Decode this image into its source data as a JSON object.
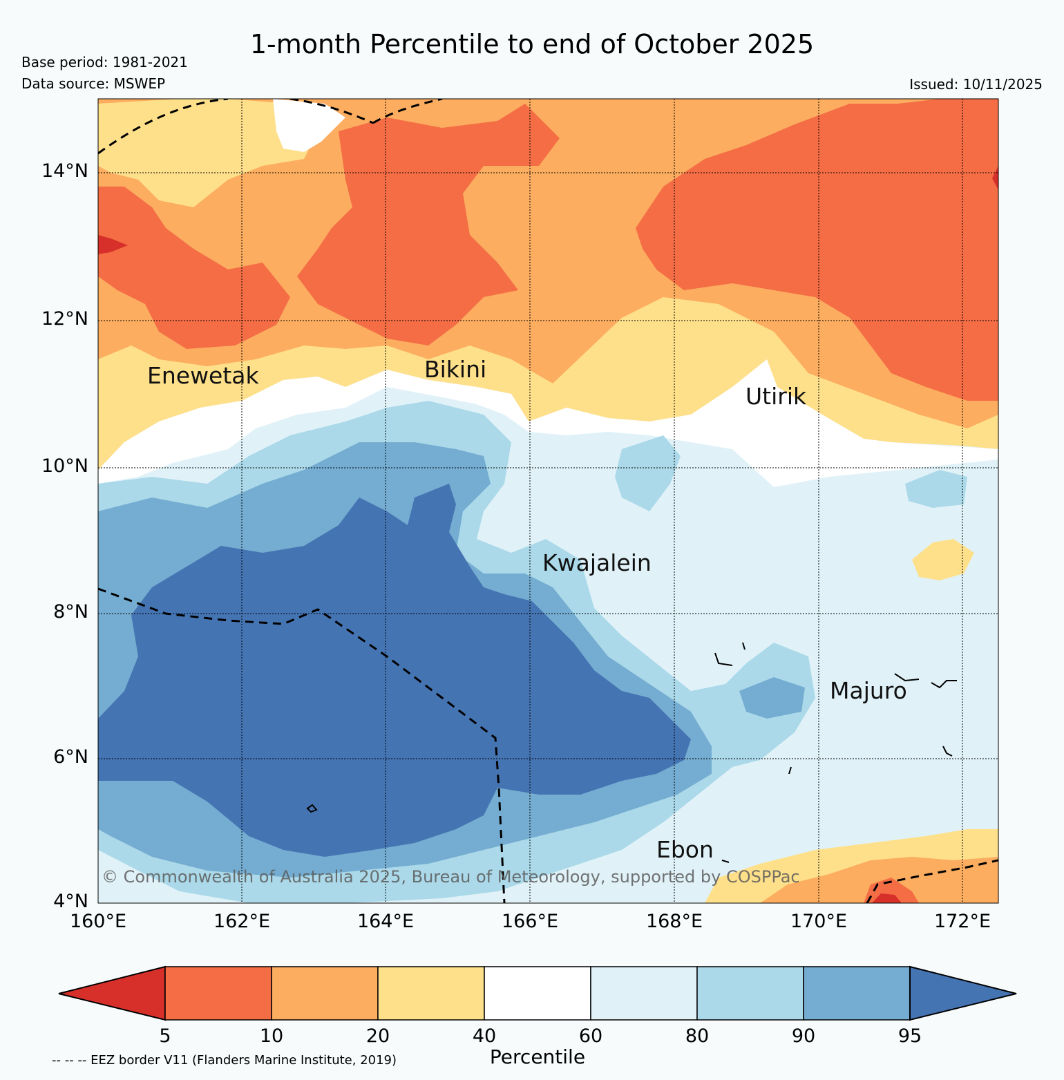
{
  "title": "1-month Percentile to end of October 2025",
  "base_period": "Base period: 1981-2021",
  "data_source": "Data source: MSWEP",
  "issued": "Issued: 10/11/2025",
  "map": {
    "lat_labels": [
      "14°N",
      "12°N",
      "10°N",
      "8°N",
      "6°N",
      "4°N"
    ],
    "lon_labels": [
      "160°E",
      "162°E",
      "164°E",
      "166°E",
      "168°E",
      "170°E",
      "172°E"
    ],
    "places": [
      {
        "name": "Enewetak"
      },
      {
        "name": "Bikini"
      },
      {
        "name": "Utirik"
      },
      {
        "name": "Kwajalein"
      },
      {
        "name": "Majuro"
      },
      {
        "name": "Ebon"
      }
    ],
    "copyright": "© Commonwealth of Australia 2025, Bureau of Meteorology, supported by COSPPac"
  },
  "colorbar": {
    "title": "Percentile",
    "ticks": [
      "5",
      "10",
      "20",
      "40",
      "60",
      "80",
      "90",
      "95"
    ],
    "colors": [
      "#d7302a",
      "#f46d45",
      "#fcad60",
      "#fee08b",
      "#ffffff",
      "#e0f2f8",
      "#abd9e9",
      "#74add1",
      "#4574b3"
    ]
  },
  "eez_note": "-- -- -- EEZ border V11 (Flanders Marine Institute, 2019)"
}
